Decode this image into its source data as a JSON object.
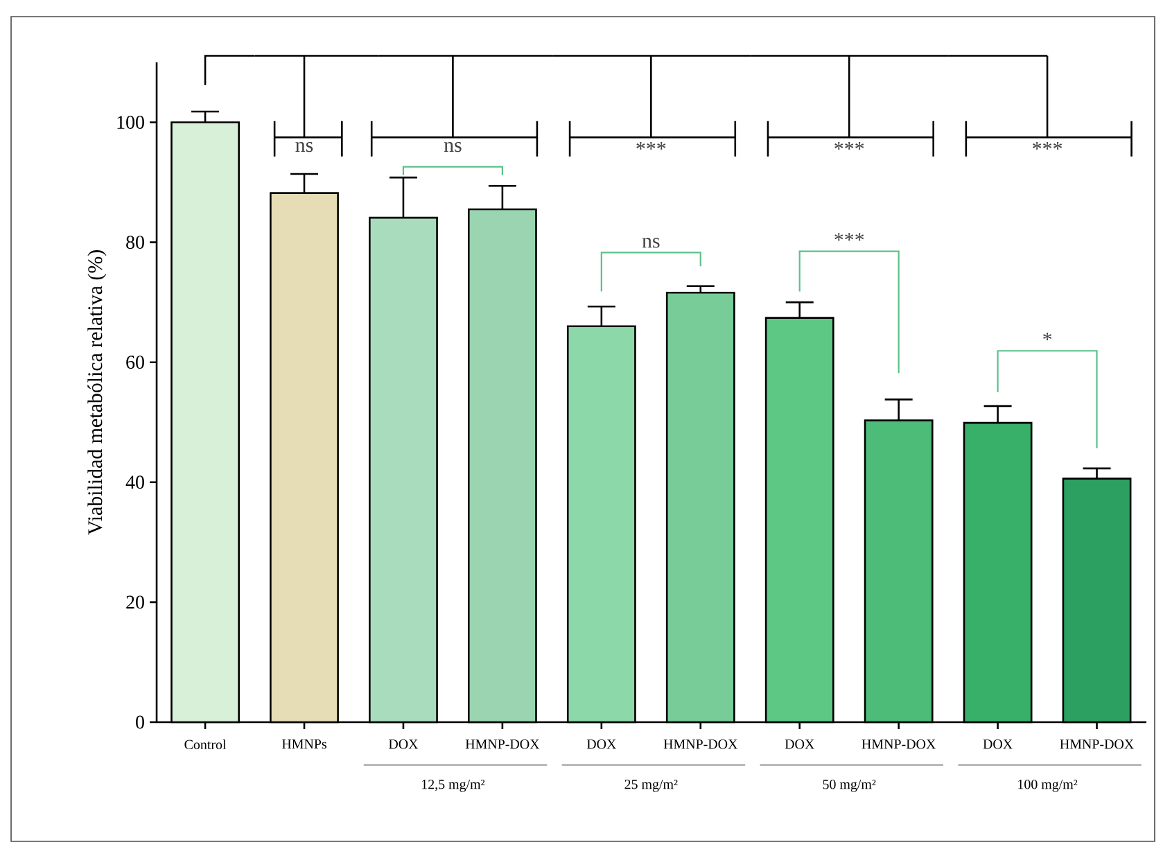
{
  "chart_data": {
    "type": "bar",
    "ylabel": "Viabilidad metabólica relativa (%)",
    "categories": [
      "Control",
      "HMNPs",
      "DOX",
      "HMNP-DOX",
      "DOX",
      "HMNP-DOX",
      "DOX",
      "HMNP-DOX",
      "DOX",
      "HMNP-DOX"
    ],
    "values": [
      100,
      88.2,
      84.1,
      85.5,
      66.0,
      71.6,
      67.4,
      50.3,
      49.9,
      40.6
    ],
    "errors": [
      1.8,
      3.2,
      6.7,
      3.9,
      3.3,
      1.1,
      2.6,
      3.5,
      2.8,
      1.7
    ],
    "colors": [
      "#d8f0d8",
      "#e6dcb6",
      "#a8dcbc",
      "#9ad4b0",
      "#8cd8a8",
      "#78cc98",
      "#5cc884",
      "#4cbc78",
      "#38b06a",
      "#2ca060"
    ],
    "ylim": [
      0,
      110
    ],
    "yticks": [
      0,
      20,
      40,
      60,
      80,
      100
    ],
    "annotations": [
      "ns",
      "ns",
      "***",
      "***",
      "***",
      "ns",
      "***",
      "*",
      "12,5 mg/m²",
      "25 mg/m²",
      "50 mg/m²",
      "100 mg/m²"
    ]
  }
}
